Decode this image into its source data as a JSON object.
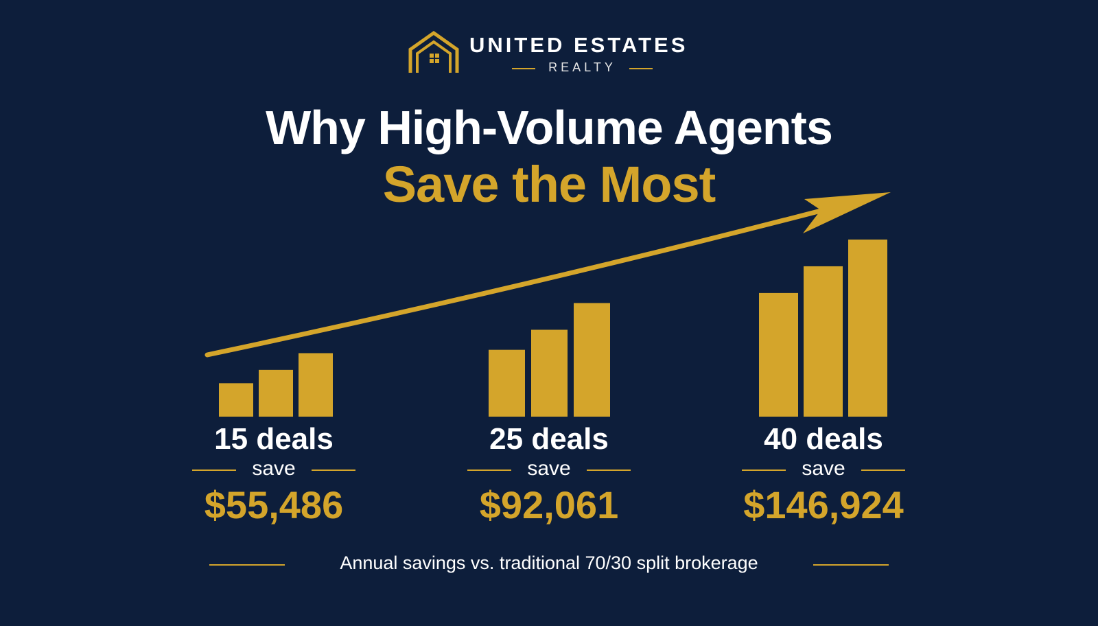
{
  "brand": {
    "name": "UNITED ESTATES",
    "sub": "REALTY",
    "logo_icon": "house-roof-icon"
  },
  "headline": {
    "line1": "Why High-Volume Agents",
    "line2": "Save the Most"
  },
  "colors": {
    "background": "#0d1e3b",
    "accent": "#d4a52b",
    "text": "#ffffff"
  },
  "tiers": [
    {
      "deals": "15 deals",
      "save_label": "save",
      "amount": "$55,486"
    },
    {
      "deals": "25 deals",
      "save_label": "save",
      "amount": "$92,061"
    },
    {
      "deals": "40 deals",
      "save_label": "save",
      "amount": "$146,924"
    }
  ],
  "chart_data": {
    "type": "bar",
    "groups": [
      {
        "label": "15 deals",
        "values": [
          1.0,
          1.4,
          1.9
        ]
      },
      {
        "label": "25 deals",
        "values": [
          2.0,
          2.6,
          3.4
        ]
      },
      {
        "label": "40 deals",
        "values": [
          3.7,
          4.5,
          5.3
        ]
      }
    ],
    "ylim": [
      0,
      5.3
    ],
    "trend_arrow": "rising",
    "grid": false
  },
  "footer": {
    "caption": "Annual savings vs. traditional 70/30 split brokerage"
  }
}
